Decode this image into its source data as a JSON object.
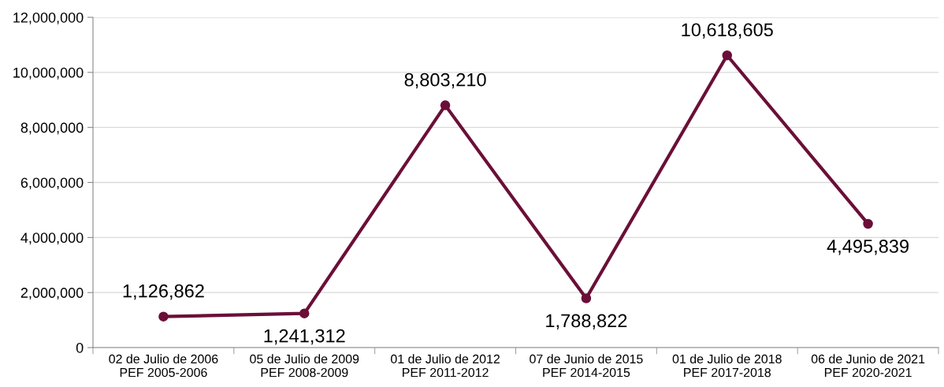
{
  "chart_data": {
    "type": "line",
    "categories": [
      "02 de Julio de 2006\nPEF 2005-2006",
      "05 de Julio de 2009\nPEF 2008-2009",
      "01 de Julio de 2012\nPEF 2011-2012",
      "07 de Junio de 2015\nPEF 2014-2015",
      "01 de Julio de 2018\nPEF 2017-2018",
      "06 de Junio de 2021\nPEF 2020-2021"
    ],
    "series": [
      {
        "color": "#6b0f38",
        "values": [
          1126862,
          1241312,
          8803210,
          1788822,
          10618605,
          4495839
        ],
        "value_labels": [
          "1,126,862",
          "1,241,312",
          "8,803,210",
          "1,788,822",
          "10,618,605",
          "4,495,839"
        ]
      }
    ],
    "ylim": [
      0,
      12000000
    ],
    "yticks": [
      {
        "value": 0,
        "label": "0"
      },
      {
        "value": 2000000,
        "label": "2,000,000"
      },
      {
        "value": 4000000,
        "label": "4,000,000"
      },
      {
        "value": 6000000,
        "label": "6,000,000"
      },
      {
        "value": 8000000,
        "label": "8,000,000"
      },
      {
        "value": 10000000,
        "label": "10,000,000"
      },
      {
        "value": 12000000,
        "label": "12,000,000"
      }
    ],
    "grid": "y",
    "marker": "circle",
    "line_style": "solid",
    "legend": false
  }
}
